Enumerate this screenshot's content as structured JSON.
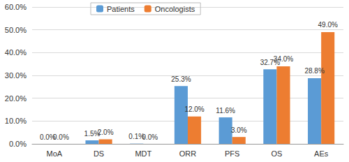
{
  "chart_data": {
    "type": "bar",
    "categories": [
      "MoA",
      "DS",
      "MDT",
      "ORR",
      "PFS",
      "OS",
      "AEs"
    ],
    "series": [
      {
        "name": "Patients",
        "color": "#5b9bd5",
        "values": [
          0.0,
          1.5,
          0.1,
          25.3,
          11.6,
          32.7,
          28.8
        ],
        "value_labels": [
          "0.0%",
          "1.5%",
          "0.1%",
          "25.3%",
          "11.6%",
          "32.7%",
          "28.8%"
        ]
      },
      {
        "name": "Oncologists",
        "color": "#ed7d31",
        "values": [
          0.0,
          2.0,
          0.0,
          12.0,
          3.0,
          34.0,
          49.0
        ],
        "value_labels": [
          "0.0%",
          "2.0%",
          "0.0%",
          "12.0%",
          "3.0%",
          "34.0%",
          "49.0%"
        ]
      }
    ],
    "ylim": [
      0,
      60
    ],
    "yticks": [
      {
        "value": 0,
        "label": "0.0%"
      },
      {
        "value": 10,
        "label": "10.0%"
      },
      {
        "value": 20,
        "label": "20.0%"
      },
      {
        "value": 30,
        "label": "30.0%"
      },
      {
        "value": 40,
        "label": "40.0%"
      },
      {
        "value": 50,
        "label": "50.0%"
      },
      {
        "value": 60,
        "label": "60.0%"
      }
    ],
    "grid": true,
    "legend": "top",
    "data_labels": true
  }
}
